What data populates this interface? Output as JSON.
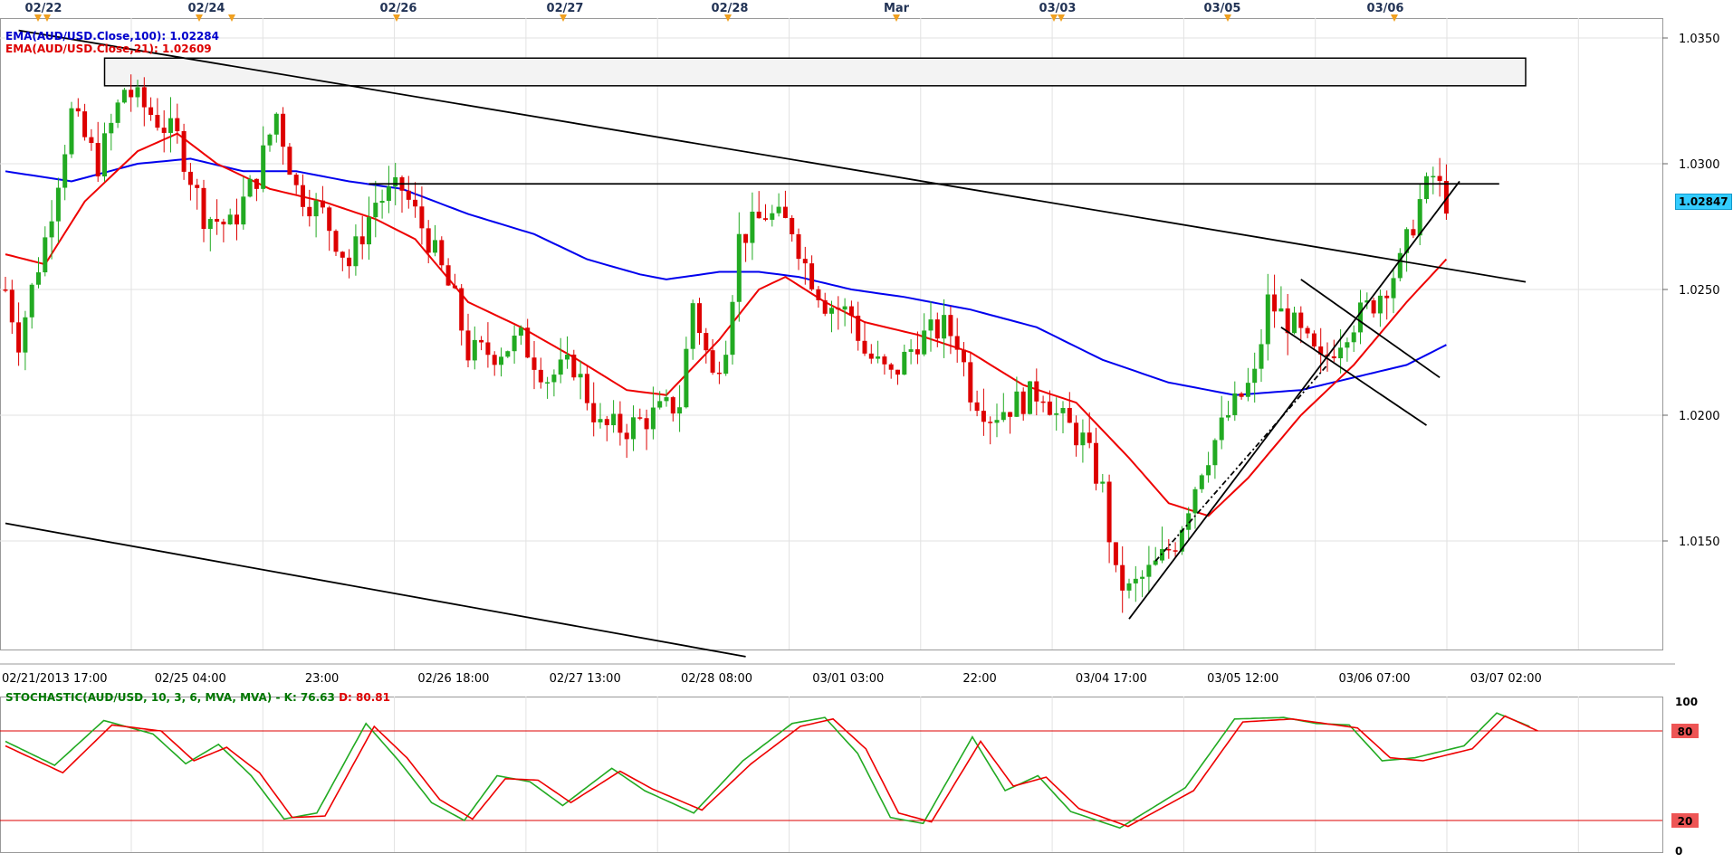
{
  "chart_data": [
    {
      "type": "candlestick",
      "symbol": "AUD/USD",
      "ylim": [
        1.01,
        1.036
      ],
      "y_ticks": [
        "1.0350",
        "1.0300",
        "1.0250",
        "1.0200",
        "1.0150"
      ],
      "x_time_labels": [
        "02/21/2013 17:00",
        "02/25 04:00",
        "23:00",
        "02/26 18:00",
        "02/27 13:00",
        "02/28 08:00",
        "03/01 03:00",
        "22:00",
        "03/04 17:00",
        "03/05 12:00",
        "03/06 07:00",
        "03/07 02:00"
      ],
      "date_markers": [
        "02/22",
        "02/24",
        "02/26",
        "02/27",
        "02/28",
        "Mar",
        "03/03",
        "03/05",
        "03/06"
      ],
      "grid": true,
      "last_price": "1.02847",
      "last_price_value": 1.02847,
      "legend": [
        {
          "label": "EMA(AUD/USD.Close,100): 1.02284",
          "color": "#0000cc"
        },
        {
          "label": "EMA(AUD/USD.Close,21): 1.02609",
          "color": "#dd0000"
        }
      ],
      "colors": {
        "up": "#22aa22",
        "down": "#dd0000",
        "ema100": "#0000ee",
        "ema21": "#ee0000",
        "trendline": "#000000"
      },
      "candles": [],
      "candle_anchors": [
        [
          0,
          1.025
        ],
        [
          2,
          1.023
        ],
        [
          6,
          1.027
        ],
        [
          10,
          1.032
        ],
        [
          14,
          1.03
        ],
        [
          18,
          1.033
        ],
        [
          22,
          1.032
        ],
        [
          26,
          1.031
        ],
        [
          30,
          1.028
        ],
        [
          34,
          1.0275
        ],
        [
          38,
          1.0295
        ],
        [
          41,
          1.032
        ],
        [
          44,
          1.029
        ],
        [
          48,
          1.028
        ],
        [
          52,
          1.026
        ],
        [
          56,
          1.0285
        ],
        [
          60,
          1.029
        ],
        [
          64,
          1.027
        ],
        [
          68,
          1.0245
        ],
        [
          70,
          1.0225
        ],
        [
          74,
          1.0225
        ],
        [
          78,
          1.023
        ],
        [
          82,
          1.0215
        ],
        [
          86,
          1.022
        ],
        [
          90,
          1.0195
        ],
        [
          94,
          1.0195
        ],
        [
          98,
          1.02
        ],
        [
          102,
          1.0205
        ],
        [
          104,
          1.0245
        ],
        [
          107,
          1.0215
        ],
        [
          109,
          1.023
        ],
        [
          111,
          1.027
        ],
        [
          115,
          1.028
        ],
        [
          119,
          1.0275
        ],
        [
          121,
          1.026
        ],
        [
          124,
          1.0245
        ],
        [
          128,
          1.024
        ],
        [
          130,
          1.0225
        ],
        [
          134,
          1.0215
        ],
        [
          138,
          1.023
        ],
        [
          142,
          1.0235
        ],
        [
          144,
          1.023
        ],
        [
          146,
          1.021
        ],
        [
          149,
          1.02
        ],
        [
          153,
          1.0205
        ],
        [
          157,
          1.021
        ],
        [
          159,
          1.02
        ],
        [
          163,
          1.019
        ],
        [
          166,
          1.017
        ],
        [
          168,
          1.0135
        ],
        [
          170,
          1.013
        ],
        [
          174,
          1.014
        ],
        [
          177,
          1.015
        ],
        [
          181,
          1.018
        ],
        [
          185,
          1.02
        ],
        [
          189,
          1.0215
        ],
        [
          191,
          1.0245
        ],
        [
          195,
          1.0235
        ],
        [
          199,
          1.022
        ],
        [
          203,
          1.0235
        ],
        [
          207,
          1.0245
        ],
        [
          211,
          1.026
        ],
        [
          214,
          1.0285
        ],
        [
          216,
          1.0295
        ],
        [
          218,
          1.0285
        ]
      ],
      "ema100": [
        [
          0,
          1.0297
        ],
        [
          10,
          1.0293
        ],
        [
          20,
          1.03
        ],
        [
          28,
          1.0302
        ],
        [
          36,
          1.0297
        ],
        [
          44,
          1.0297
        ],
        [
          52,
          1.0293
        ],
        [
          60,
          1.029
        ],
        [
          70,
          1.028
        ],
        [
          80,
          1.0272
        ],
        [
          88,
          1.0262
        ],
        [
          96,
          1.0256
        ],
        [
          100,
          1.0254
        ],
        [
          108,
          1.0257
        ],
        [
          114,
          1.0257
        ],
        [
          120,
          1.0255
        ],
        [
          128,
          1.025
        ],
        [
          136,
          1.0247
        ],
        [
          146,
          1.0242
        ],
        [
          156,
          1.0235
        ],
        [
          166,
          1.0222
        ],
        [
          176,
          1.0213
        ],
        [
          186,
          1.0208
        ],
        [
          196,
          1.021
        ],
        [
          204,
          1.0215
        ],
        [
          212,
          1.022
        ],
        [
          218,
          1.0228
        ]
      ],
      "ema21": [
        [
          0,
          1.0264
        ],
        [
          6,
          1.026
        ],
        [
          12,
          1.0285
        ],
        [
          20,
          1.0305
        ],
        [
          26,
          1.0312
        ],
        [
          32,
          1.03
        ],
        [
          40,
          1.029
        ],
        [
          48,
          1.0285
        ],
        [
          56,
          1.0278
        ],
        [
          62,
          1.027
        ],
        [
          70,
          1.0245
        ],
        [
          78,
          1.0235
        ],
        [
          86,
          1.0223
        ],
        [
          94,
          1.021
        ],
        [
          100,
          1.0208
        ],
        [
          108,
          1.023
        ],
        [
          114,
          1.025
        ],
        [
          118,
          1.0255
        ],
        [
          124,
          1.0245
        ],
        [
          130,
          1.0237
        ],
        [
          138,
          1.0232
        ],
        [
          146,
          1.0225
        ],
        [
          154,
          1.0212
        ],
        [
          162,
          1.0205
        ],
        [
          170,
          1.0183
        ],
        [
          176,
          1.0165
        ],
        [
          182,
          1.016
        ],
        [
          188,
          1.0175
        ],
        [
          196,
          1.02
        ],
        [
          204,
          1.022
        ],
        [
          212,
          1.0245
        ],
        [
          218,
          1.0262
        ]
      ],
      "zone": {
        "x0": 15,
        "x1": 230,
        "y_top": 1.0342,
        "y_bottom": 1.0331
      },
      "lines": [
        {
          "kind": "trend",
          "x0": 2,
          "y0": 1.0353,
          "x1": 230,
          "y1": 1.0253
        },
        {
          "kind": "channel",
          "x0": 0,
          "y0": 1.0157,
          "x1": 112,
          "y1": 1.0104
        },
        {
          "kind": "horizontal",
          "x0": 55,
          "y0": 1.0292,
          "x1": 226,
          "y1": 1.0292
        },
        {
          "kind": "support",
          "x0": 170,
          "y0": 1.0119,
          "x1": 220,
          "y1": 1.0293
        },
        {
          "kind": "flag-top",
          "x0": 196,
          "y0": 1.0254,
          "x1": 217,
          "y1": 1.0215
        },
        {
          "kind": "flag-bottom",
          "x0": 193,
          "y0": 1.0235,
          "x1": 215,
          "y1": 1.0196
        },
        {
          "kind": "dashed",
          "x0": 174,
          "y0": 1.0142,
          "x1": 200,
          "y1": 1.022
        }
      ]
    },
    {
      "type": "line",
      "title": "STOCHASTIC(AUD/USD, 10, 3, 6, MVA, MVA) -",
      "k_label": "K: 76.63",
      "d_label": "D: 80.81",
      "ylim": [
        0,
        100
      ],
      "y_ticks": [
        "100",
        "80",
        "20",
        "0"
      ],
      "levels": [
        80,
        20
      ],
      "series": [
        {
          "name": "K",
          "color": "#22aa22",
          "values": [
            [
              0,
              73
            ],
            [
              6,
              57
            ],
            [
              12,
              87
            ],
            [
              18,
              78
            ],
            [
              22,
              58
            ],
            [
              26,
              71
            ],
            [
              30,
              50
            ],
            [
              34,
              21
            ],
            [
              38,
              25
            ],
            [
              44,
              85
            ],
            [
              48,
              60
            ],
            [
              52,
              32
            ],
            [
              56,
              20
            ],
            [
              60,
              50
            ],
            [
              64,
              46
            ],
            [
              68,
              30
            ],
            [
              74,
              55
            ],
            [
              78,
              40
            ],
            [
              84,
              25
            ],
            [
              90,
              60
            ],
            [
              96,
              85
            ],
            [
              100,
              89
            ],
            [
              104,
              65
            ],
            [
              108,
              22
            ],
            [
              112,
              18
            ],
            [
              118,
              76
            ],
            [
              122,
              40
            ],
            [
              126,
              50
            ],
            [
              130,
              26
            ],
            [
              136,
              15
            ],
            [
              144,
              42
            ],
            [
              150,
              88
            ],
            [
              156,
              89
            ],
            [
              160,
              85
            ],
            [
              164,
              84
            ],
            [
              168,
              60
            ],
            [
              172,
              62
            ],
            [
              178,
              70
            ],
            [
              182,
              92
            ],
            [
              186,
              83
            ]
          ]
        },
        {
          "name": "D",
          "color": "#ee0000",
          "values": [
            [
              0,
              70
            ],
            [
              7,
              52
            ],
            [
              13,
              84
            ],
            [
              19,
              80
            ],
            [
              23,
              60
            ],
            [
              27,
              69
            ],
            [
              31,
              52
            ],
            [
              35,
              22
            ],
            [
              39,
              23
            ],
            [
              45,
              83
            ],
            [
              49,
              62
            ],
            [
              53,
              34
            ],
            [
              57,
              21
            ],
            [
              61,
              48
            ],
            [
              65,
              47
            ],
            [
              69,
              32
            ],
            [
              75,
              53
            ],
            [
              79,
              41
            ],
            [
              85,
              27
            ],
            [
              91,
              58
            ],
            [
              97,
              83
            ],
            [
              101,
              88
            ],
            [
              105,
              68
            ],
            [
              109,
              25
            ],
            [
              113,
              19
            ],
            [
              119,
              73
            ],
            [
              123,
              43
            ],
            [
              127,
              49
            ],
            [
              131,
              28
            ],
            [
              137,
              16
            ],
            [
              145,
              40
            ],
            [
              151,
              86
            ],
            [
              157,
              88
            ],
            [
              161,
              85
            ],
            [
              165,
              82
            ],
            [
              169,
              62
            ],
            [
              173,
              60
            ],
            [
              179,
              68
            ],
            [
              183,
              90
            ],
            [
              187,
              80
            ]
          ]
        }
      ]
    }
  ]
}
